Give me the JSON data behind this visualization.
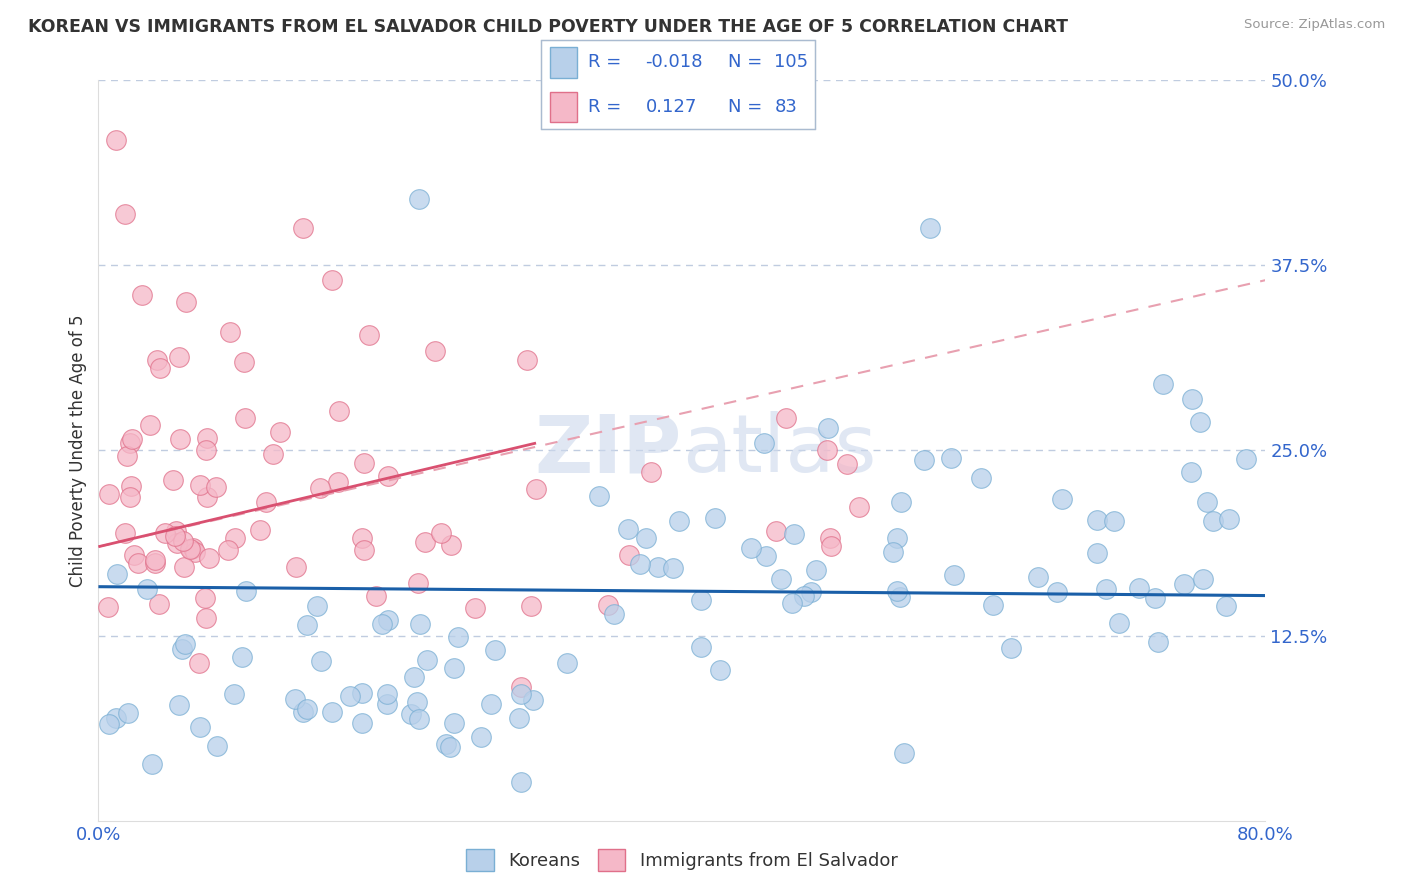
{
  "title": "KOREAN VS IMMIGRANTS FROM EL SALVADOR CHILD POVERTY UNDER THE AGE OF 5 CORRELATION CHART",
  "source": "Source: ZipAtlas.com",
  "ylabel": "Child Poverty Under the Age of 5",
  "xmin": 0.0,
  "xmax": 0.8,
  "ymin": 0.0,
  "ymax": 0.5,
  "koreans_R": -0.018,
  "koreans_N": 105,
  "salvador_R": 0.127,
  "salvador_N": 83,
  "korean_color": "#b8d0ea",
  "korean_edge": "#7aafd4",
  "salvador_color": "#f5b8c8",
  "salvador_edge": "#e0708a",
  "korean_trend_color": "#1a5fa8",
  "salvador_trend_solid_color": "#d95070",
  "salvador_trend_dash_color": "#e8a0b0",
  "watermark_color": "#ccd8ec",
  "title_color": "#333333",
  "axis_label_color": "#3366cc",
  "grid_color": "#c0cce0",
  "background_color": "#ffffff"
}
